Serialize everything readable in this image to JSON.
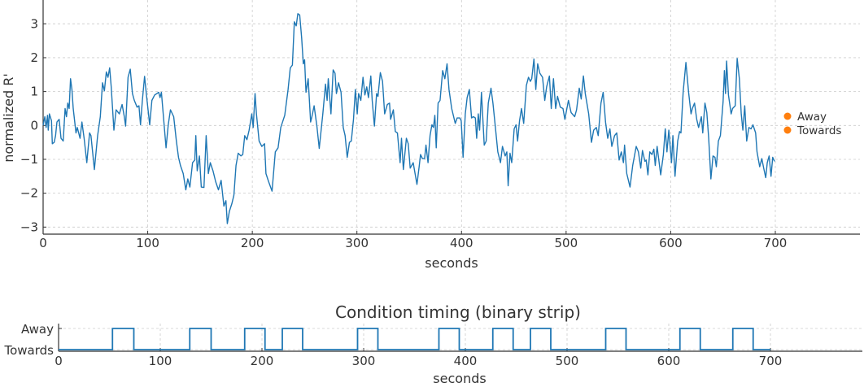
{
  "chart_data": [
    {
      "type": "line",
      "title": "",
      "xlabel": "seconds",
      "ylabel": "normalized R'",
      "xlim": [
        0,
        781
      ],
      "ylim": [
        -3.2,
        3.7
      ],
      "xticks": [
        0,
        100,
        200,
        300,
        400,
        500,
        600,
        700
      ],
      "yticks": [
        -3,
        -2,
        -1,
        0,
        1,
        2,
        3
      ],
      "ytick_labels": [
        "−3",
        "−2",
        "−1",
        "0",
        "1",
        "2",
        "3"
      ],
      "grid": true,
      "line_color": "#1f77b4",
      "legend": {
        "placement": "right",
        "color": "#ff7f0e",
        "entries": [
          "Away",
          "Towards"
        ]
      },
      "x": [
        0,
        1.6,
        2.9,
        4.2,
        4.9,
        6,
        8,
        8.8,
        10.6,
        11.9,
        13.2,
        15.3,
        17.1,
        19.2,
        21,
        22.3,
        23.6,
        24.9,
        26.2,
        27.5,
        28.8,
        31.4,
        32.7,
        35.3,
        37.1,
        39.2,
        41.8,
        44.4,
        45.7,
        49,
        52.1,
        54.7,
        56.8,
        58.6,
        60.4,
        62,
        63.6,
        65.1,
        67.7,
        69.8,
        72.9,
        75.5,
        77.6,
        78.9,
        81.2,
        83.3,
        85.4,
        87.2,
        89.8,
        91.6,
        93.1,
        94.9,
        97,
        98.8,
        101.9,
        104,
        106.6,
        108.7,
        110.5,
        111.8,
        113.1,
        117,
        117.5,
        119.6,
        121.7,
        124.8,
        127.4,
        129.4,
        131.3,
        133.9,
        136.4,
        138.3,
        140.3,
        142.9,
        145,
        146,
        147.3,
        149.4,
        151.2,
        153.8,
        155.9,
        158,
        159.8,
        162.4,
        165,
        167.6,
        170.2,
        172.8,
        174.8,
        176.1,
        178,
        180.5,
        182.4,
        184.4,
        186.5,
        189.1,
        190.9,
        192.7,
        194.8,
        196.9,
        199.5,
        200.8,
        202.6,
        203.9,
        206.5,
        209.1,
        211.7,
        213,
        215.6,
        218.9,
        222,
        224.6,
        227.2,
        231,
        234.2,
        236.3,
        238.3,
        240.2,
        242,
        243.5,
        245.3,
        247.2,
        248.7,
        250,
        251.3,
        253.4,
        255.7,
        257,
        259.1,
        261.7,
        264,
        267.4,
        270,
        271.5,
        272.6,
        275.2,
        277.3,
        279.1,
        280.4,
        282.4,
        284.8,
        286.9,
        288.7,
        290.7,
        292.8,
        294.6,
        296.7,
        298.5,
        300.3,
        301.6,
        303.7,
        305.8,
        307.6,
        309.4,
        311,
        313.3,
        314.6,
        316.7,
        318.8,
        320.1,
        322.4,
        324.5,
        326.5,
        329.1,
        331.2,
        332.2,
        334.8,
        336.7,
        338.7,
        341.3,
        342.6,
        344.4,
        347.3,
        349.1,
        350.9,
        353.8,
        355.1,
        357.4,
        359.5,
        360.8,
        362.6,
        364.7,
        366,
        368,
        369.9,
        371.7,
        373.2,
        374.5,
        375.8,
        377.6,
        379.5,
        382,
        384.1,
        386.2,
        388,
        390.6,
        394,
        395.8,
        398.4,
        399.7,
        401.5,
        403.6,
        405.4,
        407.5,
        409.6,
        411.4,
        413.2,
        414.5,
        416,
        417.3,
        419.1,
        421.7,
        423.6,
        425.6,
        428.2,
        430,
        432.1,
        434.7,
        437.3,
        439.1,
        441.7,
        443.3,
        444.6,
        446.4,
        448,
        450.3,
        452.1,
        453.6,
        455.5,
        457.3,
        459.4,
        462,
        464,
        465.8,
        467.1,
        469.2,
        471,
        472.8,
        474.9,
        477.5,
        479.6,
        481.4,
        484,
        485.8,
        487.9,
        490,
        491.8,
        494.4,
        497,
        498.8,
        502.2,
        504.8,
        508.2,
        510,
        512.6,
        514.4,
        516.5,
        518.3,
        521.6,
        524.2,
        526.3,
        528.9,
        530.7,
        533.3,
        535.4,
        537.7,
        539.8,
        541.9,
        543.7,
        546.3,
        548.4,
        550.7,
        552.8,
        554.8,
        555.9,
        558,
        561.1,
        563.7,
        567,
        569.1,
        571.4,
        573,
        575.3,
        576.6,
        578.2,
        580,
        582.1,
        583.9,
        585.2,
        587,
        588.6,
        590.4,
        593,
        594.8,
        596.4,
        598.2,
        600.8,
        602.1,
        604.1,
        606.7,
        608.5,
        609.8,
        611.9,
        614.5,
        617.1,
        619.4,
        620.7,
        622.8,
        624.9,
        626.7,
        629.3,
        630.6,
        632.7,
        634.5,
        636.3,
        638.4,
        640.4,
        642.3,
        643.6,
        645.6,
        647.5,
        650.1,
        651.3,
        652.4,
        653.4,
        655.2,
        657.8,
        659.1,
        661.7,
        663.5,
        665.6,
        667.4,
        669,
        670.8,
        672.6,
        674.7,
        676.8,
        678.6,
        681.2,
        682.5,
        685.1,
        687.1,
        688.9,
        690.8,
        692.3,
        694.1,
        695.9,
        697.5,
        699.3
      ],
      "y": [
        0,
        0.26,
        -0.06,
        0.3,
        -0.14,
        0.34,
        0.14,
        -0.54,
        -0.5,
        -0.3,
        0.1,
        0.18,
        -0.38,
        -0.46,
        0.5,
        0.26,
        0.66,
        0.5,
        1.38,
        1.06,
        0.5,
        -0.22,
        -0.06,
        -0.38,
        0.1,
        -0.38,
        -1.1,
        -0.22,
        -0.3,
        -1.3,
        -0.3,
        0.26,
        1.26,
        1.02,
        1.58,
        1.42,
        1.7,
        1.14,
        -0.14,
        0.46,
        0.34,
        0.62,
        0.26,
        -0.02,
        1.42,
        1.66,
        0.94,
        0.74,
        0.54,
        0.58,
        0.02,
        0.74,
        1.45,
        0.9,
        0.02,
        0.74,
        0.9,
        0.94,
        0.98,
        0.82,
        0.98,
        -0.46,
        -0.66,
        0.02,
        0.46,
        0.26,
        -0.46,
        -0.94,
        -1.18,
        -1.42,
        -1.9,
        -1.58,
        -1.82,
        -1.1,
        -1.02,
        -0.3,
        -1.34,
        -0.9,
        -1.82,
        -1.83,
        -0.3,
        -1.42,
        -1.1,
        -1.34,
        -1.66,
        -1.9,
        -1.62,
        -2.38,
        -2.22,
        -2.9,
        -2.54,
        -2.3,
        -2.06,
        -1.18,
        -0.82,
        -0.9,
        -0.86,
        -0.3,
        -0.42,
        -0.14,
        0.34,
        -0.06,
        0.94,
        0.34,
        -0.46,
        -0.62,
        -0.54,
        -1.42,
        -1.66,
        -1.94,
        -0.78,
        -0.66,
        -0.06,
        0.3,
        1.06,
        1.7,
        1.78,
        3.06,
        2.94,
        3.3,
        3.26,
        2.58,
        1.82,
        1.94,
        0.98,
        1.38,
        0.1,
        0.26,
        0.58,
        -0.02,
        -0.68,
        0.34,
        1.22,
        0.74,
        1.38,
        0.34,
        1.64,
        1.54,
        0.94,
        1.26,
        0.98,
        -0.06,
        -0.3,
        -0.94,
        -0.5,
        -0.46,
        0.18,
        1.06,
        0.34,
        0.94,
        0.74,
        1.42,
        0.9,
        1.14,
        0.82,
        1.46,
        0.74,
        -0.02,
        0.94,
        0.86,
        1.56,
        1.3,
        0.34,
        0.62,
        0.66,
        0.18,
        0.46,
        -0.18,
        -0.22,
        -1.1,
        -0.38,
        -1.3,
        -0.38,
        -0.54,
        -1.26,
        -1.1,
        -1.34,
        -1.74,
        -1.22,
        -0.86,
        -0.98,
        -0.98,
        -0.58,
        -1.1,
        -0.3,
        0.02,
        -0.06,
        0.3,
        -0.66,
        0.66,
        0.74,
        1.62,
        1.38,
        1.82,
        1.06,
        0.5,
        0.06,
        0.22,
        0.22,
        0.14,
        -0.94,
        0.34,
        0.82,
        1.06,
        0.22,
        0.26,
        0.22,
        -0.38,
        0.34,
        -0.14,
        0.98,
        -0.58,
        -0.46,
        0.66,
        1.1,
        0.66,
        0.02,
        -0.78,
        -1.1,
        -0.62,
        -0.9,
        -0.78,
        -1.78,
        -0.82,
        -1.1,
        -0.1,
        0.02,
        -0.46,
        0.14,
        0.5,
        0.06,
        1.18,
        1.42,
        1.3,
        1.38,
        1.96,
        1.06,
        1.82,
        1.54,
        1.42,
        0.74,
        1.14,
        1.46,
        0.5,
        1.38,
        0.5,
        0.86,
        0.54,
        0.5,
        0.18,
        0.74,
        0.38,
        0.26,
        0.46,
        1.1,
        0.78,
        1.46,
        0.94,
        0.34,
        -0.5,
        -0.14,
        -0.06,
        -0.3,
        0.66,
        0.98,
        0.1,
        -0.38,
        -0.1,
        -0.62,
        -0.3,
        -0.22,
        -1.02,
        -0.78,
        -1.1,
        -0.58,
        -1.42,
        -1.82,
        -1.18,
        -0.62,
        -0.78,
        -1.26,
        -0.74,
        -1.06,
        -1.02,
        -1.46,
        -0.78,
        -0.86,
        -0.7,
        -1.18,
        -0.62,
        -1.02,
        -1.46,
        -0.86,
        -0.1,
        -0.78,
        -0.14,
        -1.1,
        -0.3,
        -1.5,
        -0.46,
        -0.18,
        -0.22,
        0.98,
        1.86,
        0.98,
        0.34,
        0.5,
        0.66,
        0.18,
        -0.06,
        0.26,
        -0.22,
        0.66,
        0.38,
        -0.38,
        -1.58,
        -0.9,
        -0.94,
        -1.22,
        -0.46,
        -0.3,
        0.7,
        1.62,
        0.94,
        1.9,
        0.9,
        0.34,
        0.5,
        0.58,
        1.98,
        1.38,
        0.34,
        -0.14,
        0.58,
        -0.46,
        -0.06,
        -0.1,
        0.02,
        -0.22,
        -0.78,
        -1.22,
        -0.98,
        -1.26,
        -1.54,
        -1.1,
        -0.9,
        -1.5,
        -0.94,
        -1.06
      ]
    },
    {
      "type": "line",
      "title": "Condition timing (binary strip)",
      "xlabel": "seconds",
      "ylabel": "",
      "xlim": [
        0,
        790
      ],
      "xticks": [
        0,
        100,
        200,
        300,
        400,
        500,
        600,
        700
      ],
      "ytick_labels": [
        "Towards",
        "Away"
      ],
      "grid": true,
      "line_color": "#1f77b4",
      "range": [
        0,
        700
      ],
      "away_intervals": [
        [
          53,
          74
        ],
        [
          129,
          150
        ],
        [
          183,
          203
        ],
        [
          220,
          240
        ],
        [
          294,
          314
        ],
        [
          374,
          394
        ],
        [
          427,
          447
        ],
        [
          464,
          484
        ],
        [
          538,
          558
        ],
        [
          611,
          631
        ],
        [
          663,
          683
        ]
      ]
    }
  ]
}
